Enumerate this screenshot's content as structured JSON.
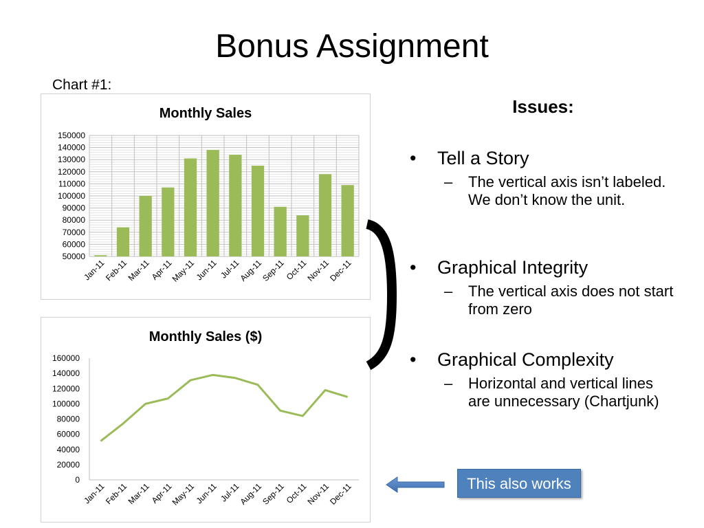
{
  "slide": {
    "title": "Bonus Assignment",
    "chart_label": "Chart #1:"
  },
  "issues": {
    "heading": "Issues:",
    "items": [
      {
        "bullet": "Tell a Story",
        "detail": "The vertical axis isn’t labeled. We don’t know the unit."
      },
      {
        "bullet": "Graphical Integrity",
        "detail": "The vertical axis does not start from zero"
      },
      {
        "bullet": "Graphical Complexity",
        "detail": "Horizontal and vertical lines are unnecessary (Chartjunk)"
      }
    ],
    "bullet_symbol": "•",
    "dash_symbol": "–"
  },
  "callout": {
    "label": "This also works",
    "arrow_icon": "left-arrow-icon"
  },
  "colors": {
    "series": "#9bbb59",
    "accent": "#4f81bd"
  },
  "chart_data": [
    {
      "type": "bar",
      "title": "Monthly Sales",
      "categories": [
        "Jan-11",
        "Feb-11",
        "Mar-11",
        "Apr-11",
        "May-11",
        "Jun-11",
        "Jul-11",
        "Aug-11",
        "Sep-11",
        "Oct-11",
        "Nov-11",
        "Dec-11"
      ],
      "values": [
        51000,
        74000,
        100000,
        107000,
        131000,
        138000,
        134000,
        125000,
        91000,
        84000,
        118000,
        109000
      ],
      "ylim": [
        50000,
        150000
      ],
      "yticks": [
        "150000",
        "140000",
        "130000",
        "120000",
        "110000",
        "100000",
        "90000",
        "80000",
        "70000",
        "60000",
        "50000"
      ],
      "grid": "on (horizontal and vertical)"
    },
    {
      "type": "line",
      "title": "Monthly Sales ($)",
      "categories": [
        "Jan-11",
        "Feb-11",
        "Mar-11",
        "Apr-11",
        "May-11",
        "Jun-11",
        "Jul-11",
        "Aug-11",
        "Sep-11",
        "Oct-11",
        "Nov-11",
        "Dec-11"
      ],
      "values": [
        51000,
        74000,
        100000,
        107000,
        131000,
        138000,
        134000,
        125000,
        91000,
        84000,
        118000,
        109000
      ],
      "ylim": [
        0,
        160000
      ],
      "yticks": [
        "160000",
        "140000",
        "120000",
        "100000",
        "80000",
        "60000",
        "40000",
        "20000",
        "0"
      ],
      "grid": "off"
    }
  ]
}
